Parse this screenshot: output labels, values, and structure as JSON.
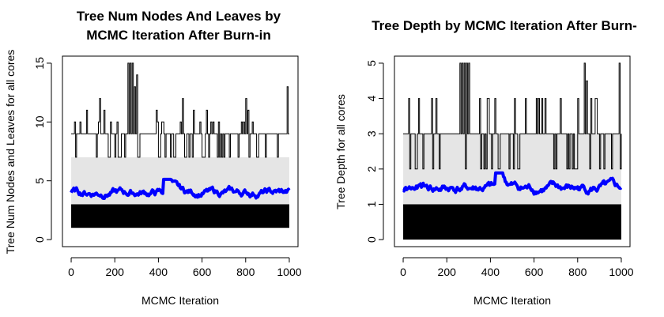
{
  "chart_data": [
    {
      "type": "line",
      "title_line1": "Tree Num Nodes And Leaves by",
      "title_line2": "MCMC Iteration After Burn-in",
      "xlabel": "MCMC Iteration",
      "ylabel": "Tree Num Nodes and Leaves for all cores",
      "xlim": [
        -40,
        1040
      ],
      "ylim": [
        -0.6,
        15.6
      ],
      "x_ticks": [
        "0",
        "200",
        "400",
        "600",
        "800",
        "1000"
      ],
      "y_ticks": [
        "0",
        "5",
        "10",
        "15"
      ],
      "grid": false,
      "band": {
        "lower": 1,
        "upper": 7,
        "color": "#e5e5e5"
      },
      "series": [
        {
          "role": "max",
          "color": "#000000",
          "base": 9,
          "values_low": 7,
          "spikes": [
            [
              260,
              15
            ],
            [
              270,
              15
            ],
            [
              280,
              15
            ],
            [
              290,
              13
            ],
            [
              300,
              14
            ],
            [
              70,
              11
            ],
            [
              130,
              12
            ],
            [
              150,
              11
            ],
            [
              180,
              10
            ],
            [
              210,
              10
            ],
            [
              390,
              11
            ],
            [
              420,
              10
            ],
            [
              500,
              10
            ],
            [
              510,
              12
            ],
            [
              560,
              11
            ],
            [
              590,
              10
            ],
            [
              620,
              11
            ],
            [
              650,
              10
            ],
            [
              800,
              12
            ],
            [
              810,
              11
            ],
            [
              830,
              10
            ],
            [
              990,
              13
            ]
          ]
        },
        {
          "role": "min",
          "color": "#000000",
          "low": 1,
          "high": 3
        },
        {
          "role": "mean",
          "color": "#0000ff",
          "level": 4.0,
          "range": [
            3.5,
            5.4
          ]
        }
      ]
    },
    {
      "type": "line",
      "title_line1": "Tree Depth by MCMC Iteration After Burn-",
      "title_line2": "",
      "xlabel": "MCMC Iteration",
      "ylabel": "Tree Depth for all cores",
      "xlim": [
        -40,
        1040
      ],
      "ylim": [
        -0.2,
        5.2
      ],
      "x_ticks": [
        "0",
        "200",
        "400",
        "600",
        "800",
        "1000"
      ],
      "y_ticks": [
        "0",
        "1",
        "2",
        "3",
        "4",
        "5"
      ],
      "grid": false,
      "band": {
        "lower": 1,
        "upper": 3,
        "color": "#e5e5e5"
      },
      "series": [
        {
          "role": "max",
          "color": "#000000",
          "base": 3,
          "values_low": 2,
          "spikes": [
            [
              260,
              5
            ],
            [
              270,
              5
            ],
            [
              280,
              5
            ],
            [
              290,
              5
            ],
            [
              300,
              5
            ],
            [
              830,
              5
            ],
            [
              840,
              4.5
            ],
            [
              990,
              5
            ],
            [
              70,
              4
            ],
            [
              130,
              4
            ],
            [
              150,
              4
            ],
            [
              390,
              4
            ],
            [
              420,
              4
            ],
            [
              510,
              4
            ],
            [
              560,
              4
            ],
            [
              620,
              4
            ],
            [
              800,
              4
            ]
          ]
        },
        {
          "role": "min",
          "color": "#000000",
          "low": 0,
          "high": 1
        },
        {
          "role": "mean",
          "color": "#0000ff",
          "level": 1.45,
          "range": [
            1.25,
            2.0
          ]
        }
      ]
    }
  ]
}
